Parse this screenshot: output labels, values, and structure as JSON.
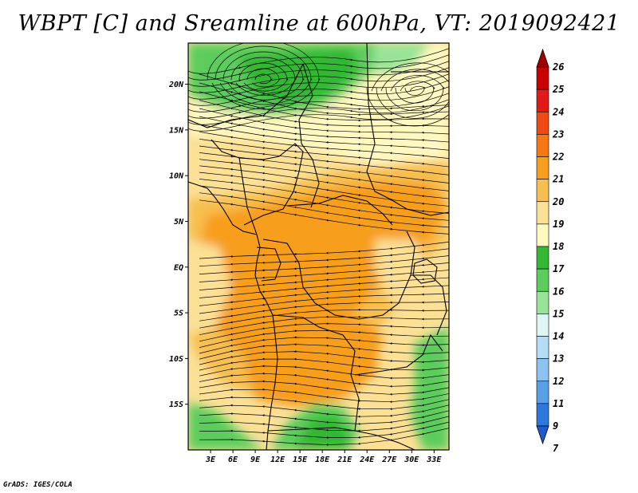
{
  "title": "WBPT [C] and Sreamline at 600hPa, VT: 2019092421",
  "credit": "GrADS: IGES/COLA",
  "map": {
    "lon_range": [
      0,
      35
    ],
    "lat_range": [
      -20,
      24.5
    ],
    "lat_ticks": [
      {
        "value": 20,
        "label": "20N"
      },
      {
        "value": 15,
        "label": "15N"
      },
      {
        "value": 10,
        "label": "10N"
      },
      {
        "value": 5,
        "label": "5N"
      },
      {
        "value": 0,
        "label": "EQ"
      },
      {
        "value": -5,
        "label": "5S"
      },
      {
        "value": -10,
        "label": "10S"
      },
      {
        "value": -15,
        "label": "15S"
      }
    ],
    "lon_ticks": [
      {
        "value": 3,
        "label": "3E"
      },
      {
        "value": 6,
        "label": "6E"
      },
      {
        "value": 9,
        "label": "9E"
      },
      {
        "value": 12,
        "label": "12E"
      },
      {
        "value": 15,
        "label": "15E"
      },
      {
        "value": 18,
        "label": "18E"
      },
      {
        "value": 21,
        "label": "21E"
      },
      {
        "value": 24,
        "label": "24E"
      },
      {
        "value": 27,
        "label": "27E"
      },
      {
        "value": 30,
        "label": "30E"
      },
      {
        "value": 33,
        "label": "33E"
      }
    ]
  },
  "colorbar": {
    "levels": [
      "26",
      "25",
      "24",
      "23",
      "22",
      "21",
      "20",
      "19",
      "18",
      "17",
      "16",
      "15",
      "14",
      "13",
      "12",
      "11",
      "9",
      "7"
    ],
    "colors": [
      "#a00000",
      "#c80000",
      "#e11a1a",
      "#f04a14",
      "#f57814",
      "#f79e1e",
      "#f7bf4f",
      "#fbe096",
      "#fff8c0",
      "#33b833",
      "#5ccd5c",
      "#99e399",
      "#e0f5f5",
      "#b4dcf5",
      "#8cc3f0",
      "#5aa0e6",
      "#2d78dc",
      "#1e5ad2"
    ]
  },
  "field_colors": {
    "green_dark": "#33b833",
    "green_mid": "#5ccd5c",
    "green_light": "#99e399",
    "cream": "#fff8c0",
    "yellow": "#fbe096",
    "light_orange": "#f7bf4f",
    "orange": "#f79e1e",
    "coast_line": "#000000",
    "streamline": "#000000"
  }
}
